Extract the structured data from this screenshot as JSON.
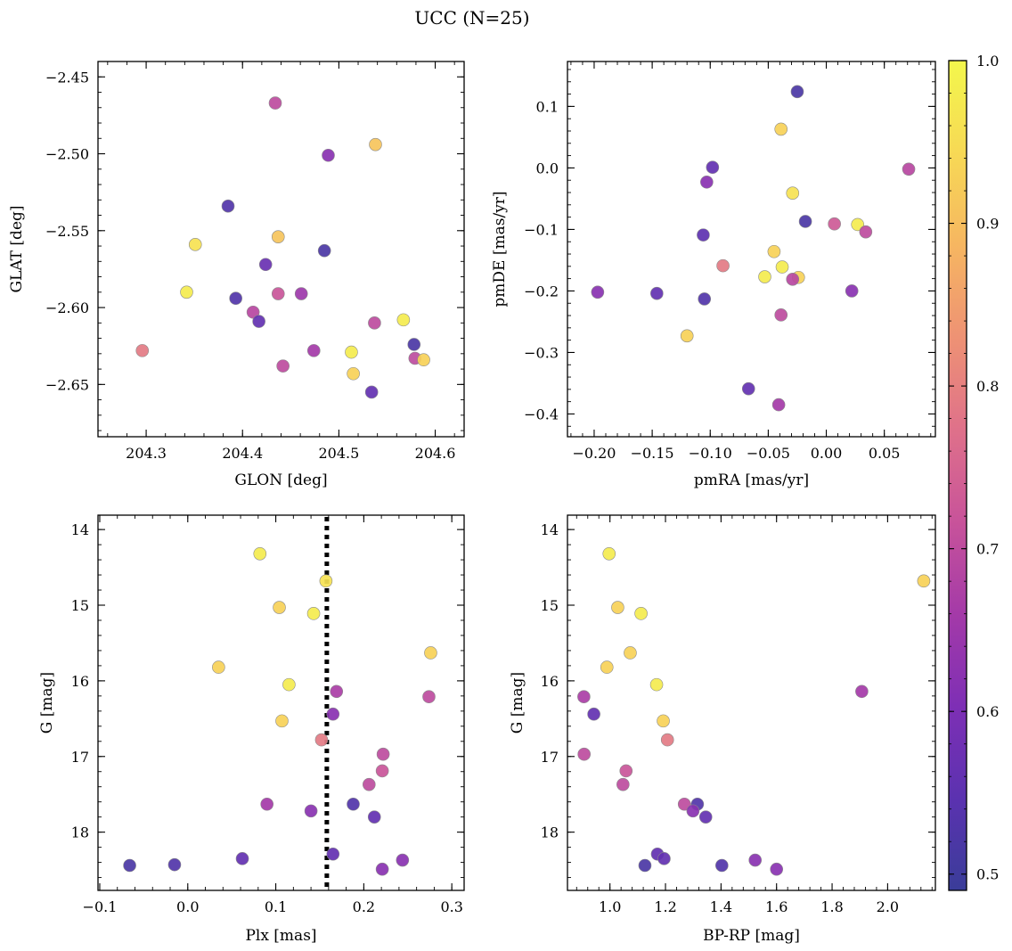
{
  "figure_title": "UCC (N=25)",
  "colorbar": {
    "range": [
      0.49,
      1.0
    ],
    "ticks": [
      0.5,
      0.6,
      0.7,
      0.8,
      0.9,
      1.0
    ],
    "tick_labels": [
      "0.5",
      "0.6",
      "0.7",
      "0.8",
      "0.9",
      "1.0"
    ],
    "colormap": "plasma (truncated)",
    "stops": [
      "#3a3d99",
      "#5b32b0",
      "#7e2fb5",
      "#a43aa8",
      "#c8539a",
      "#df718a",
      "#ee9274",
      "#f6b661",
      "#f7d955",
      "#f3f74c"
    ]
  },
  "chart_data": [
    {
      "type": "scatter",
      "xlabel": "GLON [deg]",
      "ylabel": "GLAT [deg]",
      "xlim": [
        204.25,
        204.63
      ],
      "ylim": [
        -2.684,
        -2.44
      ],
      "xticks": [
        204.3,
        204.4,
        204.5,
        204.6
      ],
      "xtick_labels": [
        "204.3",
        "204.4",
        "204.5",
        "204.6"
      ],
      "yticks": [
        -2.65,
        -2.6,
        -2.55,
        -2.5,
        -2.45
      ],
      "ytick_labels": [
        "−2.65",
        "−2.60",
        "−2.55",
        "−2.50",
        "−2.45"
      ],
      "points": [
        {
          "x": 204.434,
          "y": -2.467,
          "c": 0.7
        },
        {
          "x": 204.489,
          "y": -2.501,
          "c": 0.62
        },
        {
          "x": 204.538,
          "y": -2.494,
          "c": 0.91
        },
        {
          "x": 204.385,
          "y": -2.534,
          "c": 0.53
        },
        {
          "x": 204.351,
          "y": -2.559,
          "c": 0.96
        },
        {
          "x": 204.437,
          "y": -2.554,
          "c": 0.91
        },
        {
          "x": 204.485,
          "y": -2.563,
          "c": 0.52
        },
        {
          "x": 204.424,
          "y": -2.572,
          "c": 0.57
        },
        {
          "x": 204.342,
          "y": -2.59,
          "c": 0.98
        },
        {
          "x": 204.393,
          "y": -2.594,
          "c": 0.53
        },
        {
          "x": 204.437,
          "y": -2.591,
          "c": 0.72
        },
        {
          "x": 204.461,
          "y": -2.591,
          "c": 0.65
        },
        {
          "x": 204.411,
          "y": -2.603,
          "c": 0.69
        },
        {
          "x": 204.417,
          "y": -2.609,
          "c": 0.56
        },
        {
          "x": 204.567,
          "y": -2.608,
          "c": 0.98
        },
        {
          "x": 204.537,
          "y": -2.61,
          "c": 0.7
        },
        {
          "x": 204.578,
          "y": -2.624,
          "c": 0.52
        },
        {
          "x": 204.296,
          "y": -2.628,
          "c": 0.79
        },
        {
          "x": 204.474,
          "y": -2.628,
          "c": 0.66
        },
        {
          "x": 204.513,
          "y": -2.629,
          "c": 0.98
        },
        {
          "x": 204.579,
          "y": -2.633,
          "c": 0.7
        },
        {
          "x": 204.588,
          "y": -2.634,
          "c": 0.93
        },
        {
          "x": 204.442,
          "y": -2.638,
          "c": 0.7
        },
        {
          "x": 204.515,
          "y": -2.643,
          "c": 0.93
        },
        {
          "x": 204.534,
          "y": -2.655,
          "c": 0.56
        }
      ]
    },
    {
      "type": "scatter",
      "xlabel": "pmRA [mas/yr]",
      "ylabel": "pmDE [mas/yr]",
      "xlim": [
        -0.223,
        0.094
      ],
      "ylim": [
        -0.437,
        0.173
      ],
      "xticks": [
        -0.2,
        -0.15,
        -0.1,
        -0.05,
        0.0,
        0.05
      ],
      "xtick_labels": [
        "−0.20",
        "−0.15",
        "−0.10",
        "−0.05",
        "0.00",
        "0.05"
      ],
      "yticks": [
        -0.4,
        -0.3,
        -0.2,
        -0.1,
        0.0,
        0.1
      ],
      "ytick_labels": [
        "−0.4",
        "−0.3",
        "−0.2",
        "−0.1",
        "0.0",
        "0.1"
      ],
      "points": [
        {
          "x": -0.025,
          "y": 0.124,
          "c": 0.52
        },
        {
          "x": -0.039,
          "y": 0.063,
          "c": 0.93
        },
        {
          "x": -0.098,
          "y": 0.001,
          "c": 0.56
        },
        {
          "x": 0.071,
          "y": -0.002,
          "c": 0.69
        },
        {
          "x": -0.103,
          "y": -0.023,
          "c": 0.62
        },
        {
          "x": -0.029,
          "y": -0.041,
          "c": 0.96
        },
        {
          "x": -0.018,
          "y": -0.087,
          "c": 0.52
        },
        {
          "x": 0.007,
          "y": -0.091,
          "c": 0.73
        },
        {
          "x": 0.027,
          "y": -0.092,
          "c": 0.98
        },
        {
          "x": -0.106,
          "y": -0.109,
          "c": 0.55
        },
        {
          "x": 0.034,
          "y": -0.104,
          "c": 0.7
        },
        {
          "x": -0.045,
          "y": -0.136,
          "c": 0.93
        },
        {
          "x": -0.089,
          "y": -0.159,
          "c": 0.79
        },
        {
          "x": -0.038,
          "y": -0.161,
          "c": 0.98
        },
        {
          "x": -0.053,
          "y": -0.177,
          "c": 0.98
        },
        {
          "x": -0.024,
          "y": -0.178,
          "c": 0.93
        },
        {
          "x": -0.029,
          "y": -0.181,
          "c": 0.69
        },
        {
          "x": -0.197,
          "y": -0.202,
          "c": 0.62
        },
        {
          "x": -0.146,
          "y": -0.204,
          "c": 0.56
        },
        {
          "x": 0.022,
          "y": -0.2,
          "c": 0.62
        },
        {
          "x": -0.105,
          "y": -0.213,
          "c": 0.53
        },
        {
          "x": -0.039,
          "y": -0.239,
          "c": 0.7
        },
        {
          "x": -0.12,
          "y": -0.273,
          "c": 0.93
        },
        {
          "x": -0.067,
          "y": -0.359,
          "c": 0.56
        },
        {
          "x": -0.041,
          "y": -0.385,
          "c": 0.66
        }
      ]
    },
    {
      "type": "scatter",
      "xlabel": "Plx [mas]",
      "ylabel": "G [mag]",
      "xlim": [
        -0.102,
        0.314
      ],
      "ylim": [
        18.77,
        13.81
      ],
      "y_inverted": true,
      "xticks": [
        -0.1,
        0.0,
        0.1,
        0.2,
        0.3
      ],
      "xtick_labels": [
        "−0.1",
        "0.0",
        "0.1",
        "0.2",
        "0.3"
      ],
      "yticks": [
        14,
        15,
        16,
        17,
        18
      ],
      "ytick_labels": [
        "14",
        "15",
        "16",
        "17",
        "18"
      ],
      "vline": {
        "x": 0.158,
        "style": "dotted"
      },
      "points": [
        {
          "x": 0.082,
          "y": 14.32,
          "c": 0.98
        },
        {
          "x": 0.157,
          "y": 14.68,
          "c": 0.96
        },
        {
          "x": 0.104,
          "y": 15.03,
          "c": 0.93
        },
        {
          "x": 0.143,
          "y": 15.11,
          "c": 0.98
        },
        {
          "x": 0.276,
          "y": 15.63,
          "c": 0.93
        },
        {
          "x": 0.035,
          "y": 15.82,
          "c": 0.93
        },
        {
          "x": 0.115,
          "y": 16.05,
          "c": 0.98
        },
        {
          "x": 0.169,
          "y": 16.14,
          "c": 0.67
        },
        {
          "x": 0.274,
          "y": 16.21,
          "c": 0.7
        },
        {
          "x": 0.165,
          "y": 16.44,
          "c": 0.62
        },
        {
          "x": 0.107,
          "y": 16.53,
          "c": 0.93
        },
        {
          "x": 0.152,
          "y": 16.78,
          "c": 0.79
        },
        {
          "x": 0.222,
          "y": 16.97,
          "c": 0.7
        },
        {
          "x": 0.221,
          "y": 17.19,
          "c": 0.72
        },
        {
          "x": 0.206,
          "y": 17.37,
          "c": 0.7
        },
        {
          "x": 0.09,
          "y": 17.63,
          "c": 0.66
        },
        {
          "x": 0.188,
          "y": 17.63,
          "c": 0.53
        },
        {
          "x": 0.14,
          "y": 17.72,
          "c": 0.62
        },
        {
          "x": 0.212,
          "y": 17.8,
          "c": 0.56
        },
        {
          "x": 0.165,
          "y": 18.29,
          "c": 0.56
        },
        {
          "x": 0.062,
          "y": 18.35,
          "c": 0.56
        },
        {
          "x": 0.244,
          "y": 18.37,
          "c": 0.62
        },
        {
          "x": -0.066,
          "y": 18.44,
          "c": 0.52
        },
        {
          "x": -0.015,
          "y": 18.43,
          "c": 0.53
        },
        {
          "x": 0.221,
          "y": 18.49,
          "c": 0.62
        }
      ]
    },
    {
      "type": "scatter",
      "xlabel": "BP-RP [mag]",
      "ylabel": "G [mag]",
      "xlim": [
        0.847,
        2.172
      ],
      "ylim": [
        18.77,
        13.81
      ],
      "y_inverted": true,
      "xticks": [
        1.0,
        1.2,
        1.4,
        1.6,
        1.8,
        2.0
      ],
      "xtick_labels": [
        "1.0",
        "1.2",
        "1.4",
        "1.6",
        "1.8",
        "2.0"
      ],
      "yticks": [
        14,
        15,
        16,
        17,
        18
      ],
      "ytick_labels": [
        "14",
        "15",
        "16",
        "17",
        "18"
      ],
      "points": [
        {
          "x": 0.997,
          "y": 14.32,
          "c": 0.98
        },
        {
          "x": 2.13,
          "y": 14.68,
          "c": 0.93
        },
        {
          "x": 1.028,
          "y": 15.03,
          "c": 0.93
        },
        {
          "x": 1.112,
          "y": 15.11,
          "c": 0.98
        },
        {
          "x": 1.073,
          "y": 15.63,
          "c": 0.93
        },
        {
          "x": 0.989,
          "y": 15.82,
          "c": 0.93
        },
        {
          "x": 1.168,
          "y": 16.05,
          "c": 0.98
        },
        {
          "x": 1.907,
          "y": 16.14,
          "c": 0.66
        },
        {
          "x": 0.906,
          "y": 16.21,
          "c": 0.67
        },
        {
          "x": 0.942,
          "y": 16.44,
          "c": 0.56
        },
        {
          "x": 1.192,
          "y": 16.53,
          "c": 0.93
        },
        {
          "x": 1.207,
          "y": 16.78,
          "c": 0.79
        },
        {
          "x": 0.907,
          "y": 16.97,
          "c": 0.7
        },
        {
          "x": 1.058,
          "y": 17.19,
          "c": 0.72
        },
        {
          "x": 1.047,
          "y": 17.37,
          "c": 0.7
        },
        {
          "x": 1.268,
          "y": 17.63,
          "c": 0.7
        },
        {
          "x": 1.315,
          "y": 17.63,
          "c": 0.53
        },
        {
          "x": 1.299,
          "y": 17.72,
          "c": 0.62
        },
        {
          "x": 1.345,
          "y": 17.8,
          "c": 0.56
        },
        {
          "x": 1.171,
          "y": 18.29,
          "c": 0.56
        },
        {
          "x": 1.195,
          "y": 18.35,
          "c": 0.56
        },
        {
          "x": 1.523,
          "y": 18.37,
          "c": 0.62
        },
        {
          "x": 1.126,
          "y": 18.44,
          "c": 0.52
        },
        {
          "x": 1.403,
          "y": 18.44,
          "c": 0.53
        },
        {
          "x": 1.6,
          "y": 18.49,
          "c": 0.62
        }
      ]
    }
  ]
}
